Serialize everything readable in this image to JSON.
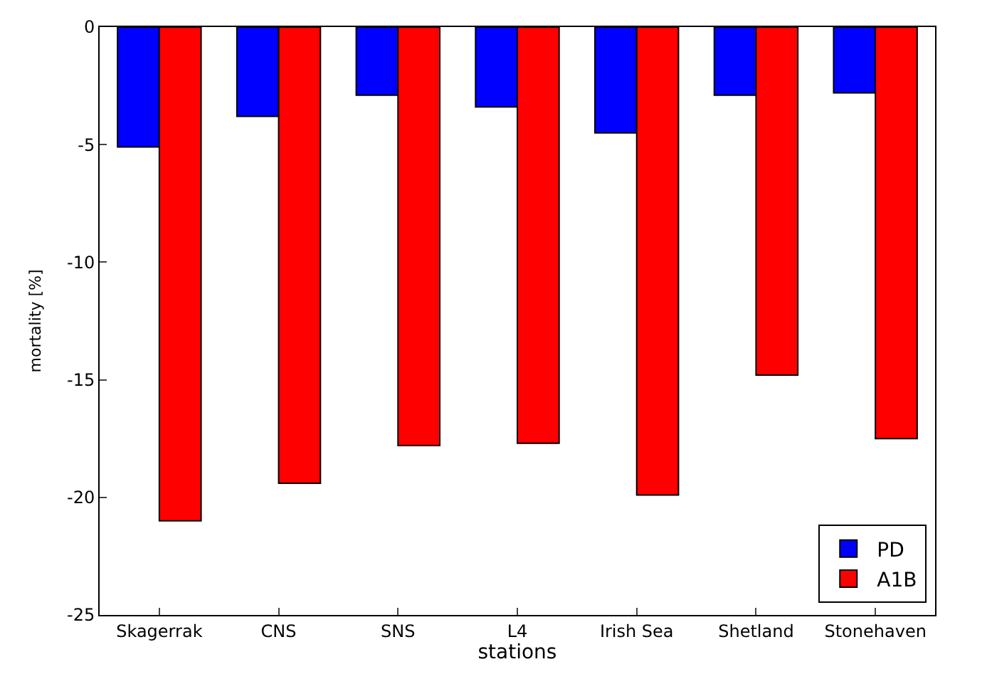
{
  "chart_data": {
    "type": "bar",
    "xlabel": "stations",
    "ylabel": "mortality [%]",
    "categories": [
      "Skagerrak",
      "CNS",
      "SNS",
      "L4",
      "Irish Sea",
      "Shetland",
      "Stonehaven"
    ],
    "series": [
      {
        "name": "PD",
        "color": "#0000ff",
        "values": [
          -5.1,
          -3.8,
          -2.9,
          -3.4,
          -4.5,
          -2.9,
          -2.8
        ]
      },
      {
        "name": "A1B",
        "color": "#ff0000",
        "values": [
          -21.0,
          -19.4,
          -17.8,
          -17.7,
          -19.9,
          -14.8,
          -17.5
        ]
      }
    ],
    "ylim": [
      -25,
      0
    ],
    "yticks": [
      -25,
      -20,
      -15,
      -10,
      -5,
      0
    ],
    "legend": "bottom right"
  }
}
